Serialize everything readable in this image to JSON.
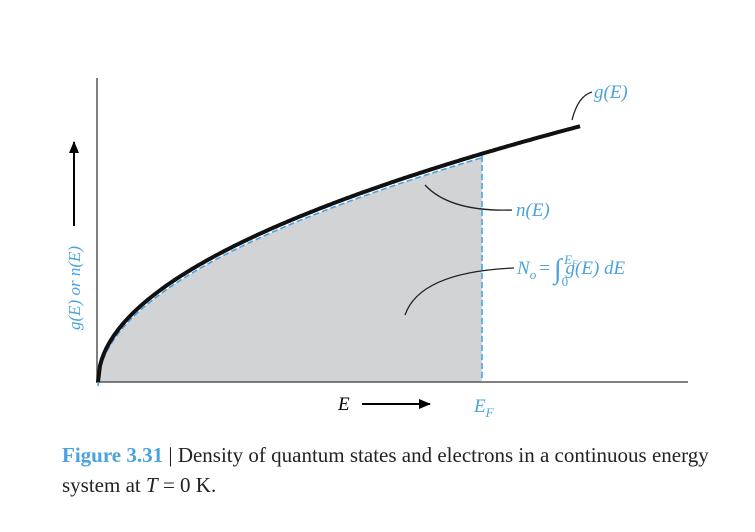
{
  "figure": {
    "y_axis_label": "g(E) or n(E)",
    "x_axis_label": "E",
    "fermi": {
      "base": "E",
      "sub": "F"
    },
    "curve_label": "g(E)",
    "filled_label": "n(E)",
    "integral": {
      "lhs": "N",
      "lhs_sub": "o",
      "equals": "=",
      "integral_sign": "∫",
      "lower": "0",
      "upper_base": "E",
      "upper_sub": "F",
      "integrand": "g(E) dE"
    }
  },
  "caption": {
    "label": "Figure 3.31",
    "text": "| Density of quantum states and electrons in a continuous energy system at",
    "variable": "T",
    "tail": "= 0 K."
  }
}
